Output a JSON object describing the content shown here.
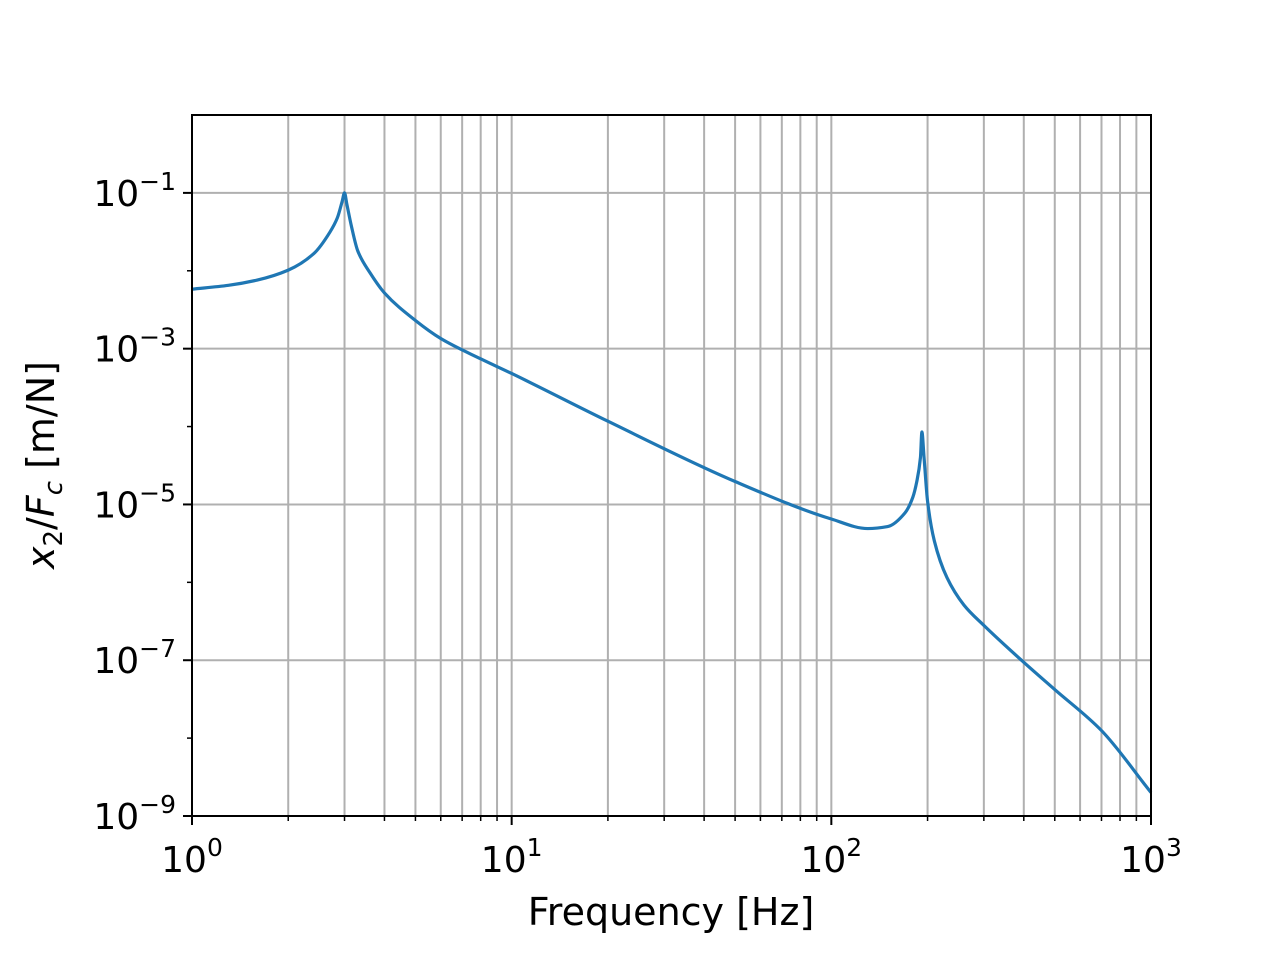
{
  "chart_data": {
    "type": "line",
    "title": "",
    "xlabel": "Frequency [Hz]",
    "ylabel_parts": {
      "x": "x",
      "x_sub": "2",
      "slash": "/",
      "f": "F",
      "f_sub": "c",
      "unit": " [m/N]"
    },
    "x_scale": "log",
    "y_scale": "log",
    "xlim": [
      1,
      1000
    ],
    "ylim": [
      1e-09,
      1.0
    ],
    "grid": true,
    "x_ticks": [
      {
        "value": 1,
        "base": "10",
        "exp": "0"
      },
      {
        "value": 10,
        "base": "10",
        "exp": "1"
      },
      {
        "value": 100,
        "base": "10",
        "exp": "2"
      },
      {
        "value": 1000,
        "base": "10",
        "exp": "3"
      }
    ],
    "y_ticks": [
      {
        "value": 1e-09,
        "base": "10",
        "exp": "−9"
      },
      {
        "value": 1e-07,
        "base": "10",
        "exp": "−7"
      },
      {
        "value": 1e-05,
        "base": "10",
        "exp": "−5"
      },
      {
        "value": 0.001,
        "base": "10",
        "exp": "−3"
      },
      {
        "value": 0.1,
        "base": "10",
        "exp": "−1"
      }
    ],
    "series": [
      {
        "color": "#1f77b4",
        "x": [
          1,
          1.3,
          1.6,
          2.0,
          2.4,
          2.7,
          2.85,
          2.95,
          3.0,
          3.05,
          3.15,
          3.3,
          3.6,
          4.0,
          5,
          6,
          8,
          10,
          20,
          50,
          100,
          130,
          150,
          170,
          180,
          185,
          190,
          192,
          195,
          200,
          210,
          230,
          260,
          300,
          400,
          500,
          700,
          1000
        ],
        "y": [
          0.0058,
          0.0065,
          0.0076,
          0.0102,
          0.0165,
          0.0313,
          0.048,
          0.078,
          0.1,
          0.072,
          0.038,
          0.018,
          0.0095,
          0.0052,
          0.0023,
          0.00135,
          0.00074,
          0.00048,
          0.000117,
          1.97e-05,
          6.5e-06,
          4.9e-06,
          5.2e-06,
          7.8e-06,
          1.25e-05,
          1.95e-05,
          4e-05,
          8.52e-05,
          4e-05,
          1.1e-05,
          3.4e-06,
          1.15e-06,
          5.1e-07,
          2.8e-07,
          9.4e-08,
          4.2e-08,
          1.25e-08,
          2e-09
        ]
      }
    ]
  }
}
